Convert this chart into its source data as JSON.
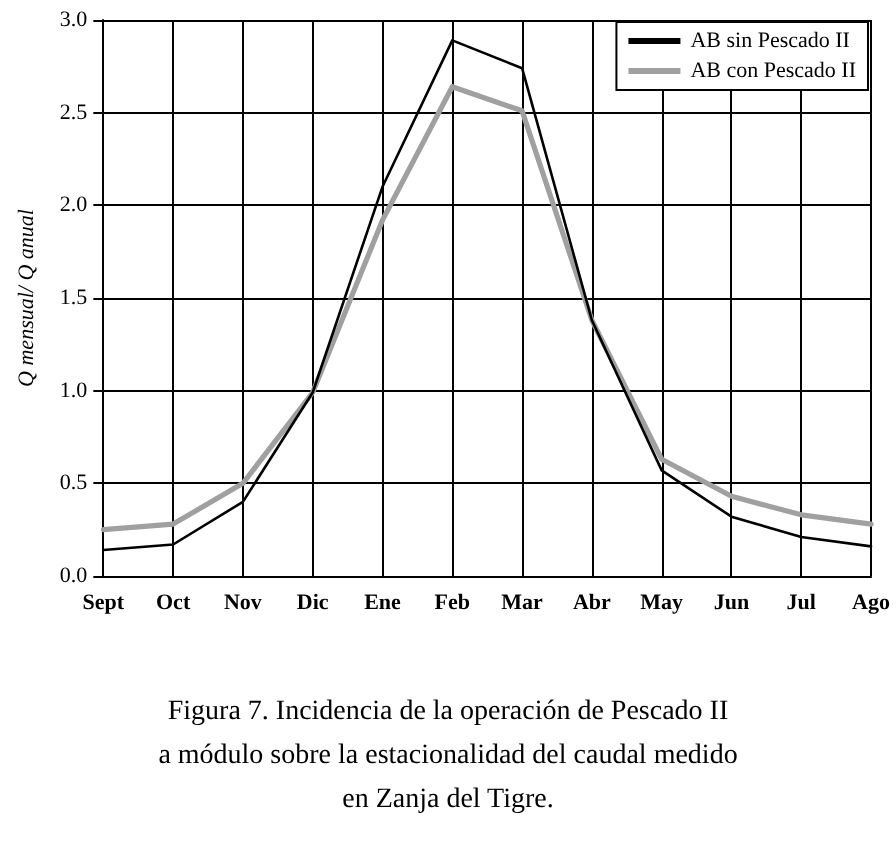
{
  "chart_data": {
    "type": "line",
    "categories": [
      "Sept",
      "Oct",
      "Nov",
      "Dic",
      "Ene",
      "Feb",
      "Mar",
      "Abr",
      "May",
      "Jun",
      "Jul",
      "Ago"
    ],
    "series": [
      {
        "name": "AB sin Pescado II",
        "color": "#000000",
        "values": [
          0.14,
          0.17,
          0.4,
          0.99,
          2.1,
          2.89,
          2.74,
          1.38,
          0.57,
          0.32,
          0.21,
          0.16
        ]
      },
      {
        "name": "AB con Pescado II",
        "color": "#a0a0a0",
        "values": [
          0.25,
          0.28,
          0.5,
          0.99,
          1.92,
          2.64,
          2.51,
          1.38,
          0.63,
          0.43,
          0.33,
          0.28
        ]
      }
    ],
    "ylabel": "Q mensual/ Q anual",
    "ylim": [
      0,
      3
    ],
    "yticks": [
      {
        "value": 0,
        "label": "0.0"
      },
      0.5,
      {
        "value": 1,
        "label": "1.0"
      },
      1.5,
      {
        "value": 2,
        "label": "2.0"
      },
      2.5,
      {
        "value": 3,
        "label": "3.0"
      }
    ],
    "grid": true,
    "legend": "top right",
    "marker": "none",
    "line_style": "solid",
    "annotations": [
      "Figura 7. Incidencia de la operación de Pescado II\na módulo sobre la estacionalidad del caudal medido\nen Zanja del Tigre."
    ]
  }
}
